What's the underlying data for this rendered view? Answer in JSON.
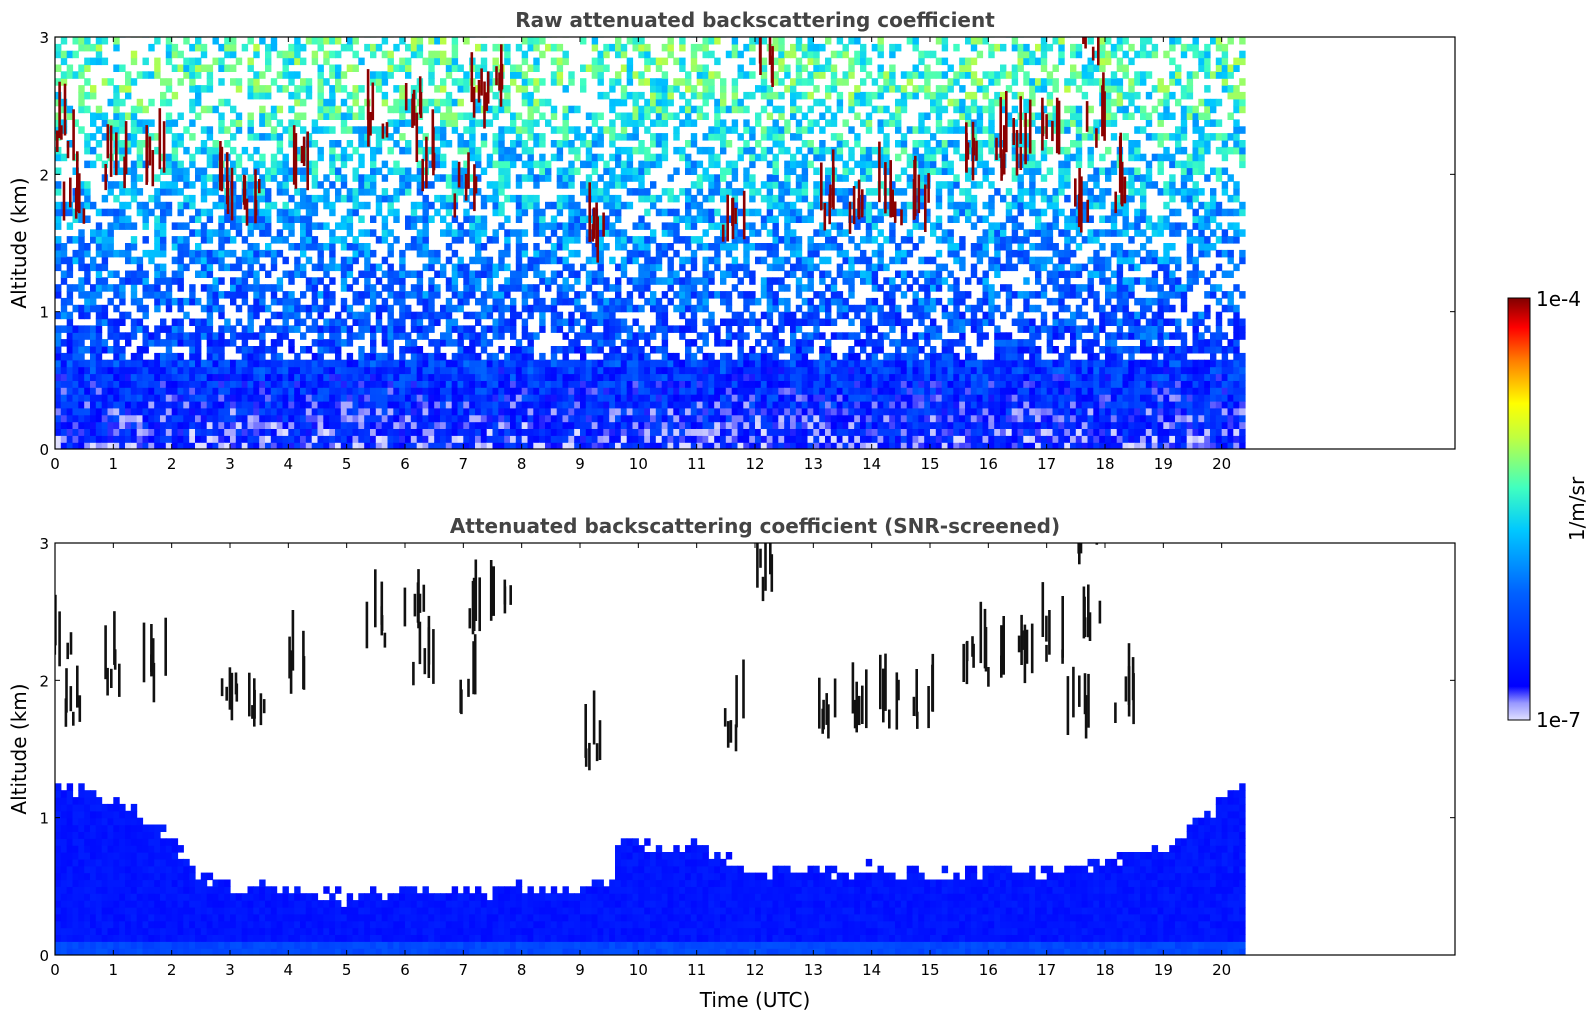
{
  "chart_data": [
    {
      "type": "heatmap",
      "title": "Raw attenuated backscattering coefficient",
      "xlabel": "",
      "ylabel": "Altitude (km)",
      "xlim": [
        0,
        24
      ],
      "ylim": [
        0,
        3
      ],
      "xticks": [
        0,
        1,
        2,
        3,
        4,
        5,
        6,
        7,
        8,
        9,
        10,
        11,
        12,
        13,
        14,
        15,
        16,
        17,
        18,
        19,
        20
      ],
      "yticks": [
        0,
        1,
        2,
        3
      ],
      "data_end_time": 20.4,
      "screened": false,
      "clouds": [
        {
          "t": 0.1,
          "h": 2.2
        },
        {
          "t": 0.3,
          "h": 1.75
        },
        {
          "t": 1.0,
          "h": 2.0
        },
        {
          "t": 1.7,
          "h": 1.95
        },
        {
          "t": 2.9,
          "h": 1.78
        },
        {
          "t": 3.4,
          "h": 1.75
        },
        {
          "t": 4.2,
          "h": 2.0
        },
        {
          "t": 5.5,
          "h": 2.3
        },
        {
          "t": 6.1,
          "h": 2.4
        },
        {
          "t": 6.3,
          "h": 2.0
        },
        {
          "t": 7.0,
          "h": 1.8
        },
        {
          "t": 7.2,
          "h": 2.45
        },
        {
          "t": 7.6,
          "h": 2.55
        },
        {
          "t": 9.2,
          "h": 1.45
        },
        {
          "t": 11.6,
          "h": 1.6
        },
        {
          "t": 12.1,
          "h": 2.7
        },
        {
          "t": 13.2,
          "h": 1.65
        },
        {
          "t": 13.7,
          "h": 1.65
        },
        {
          "t": 14.3,
          "h": 1.75
        },
        {
          "t": 14.9,
          "h": 1.7
        },
        {
          "t": 15.7,
          "h": 2.05
        },
        {
          "t": 16.1,
          "h": 2.05
        },
        {
          "t": 16.6,
          "h": 2.1
        },
        {
          "t": 17.1,
          "h": 2.2
        },
        {
          "t": 17.5,
          "h": 1.7
        },
        {
          "t": 17.8,
          "h": 2.3
        },
        {
          "t": 18.3,
          "h": 1.8
        },
        {
          "t": 17.7,
          "h": 2.9
        }
      ]
    },
    {
      "type": "heatmap",
      "title": "Attenuated backscattering coefficient (SNR-screened)",
      "xlabel": "Time (UTC)",
      "ylabel": "Altitude (km)",
      "xlim": [
        0,
        24
      ],
      "ylim": [
        0,
        3
      ],
      "xticks": [
        0,
        1,
        2,
        3,
        4,
        5,
        6,
        7,
        8,
        9,
        10,
        11,
        12,
        13,
        14,
        15,
        16,
        17,
        18,
        19,
        20
      ],
      "yticks": [
        0,
        1,
        2,
        3
      ],
      "data_end_time": 20.4,
      "screened": true,
      "boundary_layer_top_km": [
        [
          0,
          1.2
        ],
        [
          1,
          1.1
        ],
        [
          2,
          0.8
        ],
        [
          2.4,
          0.55
        ],
        [
          3,
          0.45
        ],
        [
          4,
          0.45
        ],
        [
          5,
          0.4
        ],
        [
          6,
          0.45
        ],
        [
          7,
          0.45
        ],
        [
          8,
          0.45
        ],
        [
          9,
          0.45
        ],
        [
          9.5,
          0.5
        ],
        [
          9.6,
          0.8
        ],
        [
          11,
          0.75
        ],
        [
          12,
          0.6
        ],
        [
          13,
          0.6
        ],
        [
          14,
          0.6
        ],
        [
          15,
          0.55
        ],
        [
          16,
          0.6
        ],
        [
          17,
          0.6
        ],
        [
          18,
          0.65
        ],
        [
          19,
          0.75
        ],
        [
          20.4,
          1.25
        ]
      ]
    }
  ],
  "colorbar": {
    "label": "1/m/sr",
    "min_label": "1e-7",
    "max_label": "1e-4",
    "scale": "log",
    "colormap": "jet"
  }
}
